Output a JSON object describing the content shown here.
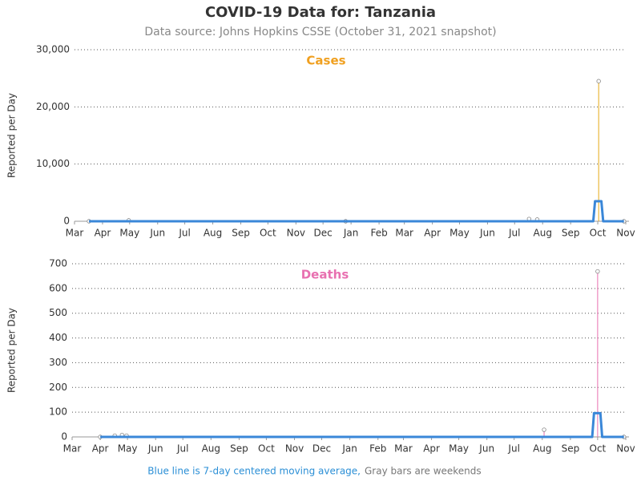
{
  "title": "COVID-19 Data for: Tanzania",
  "subtitle": "Data source: Johns Hopkins CSSE (October 31, 2021 snapshot)",
  "note": {
    "line": "Blue line is 7-day centered moving average,",
    "bars": "Gray bars are weekends"
  },
  "chart_data": [
    {
      "type": "line",
      "title": "Cases",
      "title_color": "#f0a020",
      "ylabel": "Reported per Day",
      "xlim": [
        0,
        610
      ],
      "xticks": [
        {
          "value": 0,
          "label": "Mar"
        },
        {
          "value": 31,
          "label": "Apr"
        },
        {
          "value": 61,
          "label": "May"
        },
        {
          "value": 92,
          "label": "Jun"
        },
        {
          "value": 122,
          "label": "Jul"
        },
        {
          "value": 153,
          "label": "Aug"
        },
        {
          "value": 184,
          "label": "Sep"
        },
        {
          "value": 214,
          "label": "Oct"
        },
        {
          "value": 245,
          "label": "Nov"
        },
        {
          "value": 275,
          "label": "Dec"
        },
        {
          "value": 306,
          "label": "Jan"
        },
        {
          "value": 337,
          "label": "Feb"
        },
        {
          "value": 365,
          "label": "Mar"
        },
        {
          "value": 396,
          "label": "Apr"
        },
        {
          "value": 426,
          "label": "May"
        },
        {
          "value": 457,
          "label": "Jun"
        },
        {
          "value": 487,
          "label": "Jul"
        },
        {
          "value": 518,
          "label": "Aug"
        },
        {
          "value": 549,
          "label": "Sep"
        },
        {
          "value": 579,
          "label": "Oct"
        },
        {
          "value": 610,
          "label": "Nov"
        }
      ],
      "ylim": [
        0,
        30000
      ],
      "yticks": [
        0,
        {
          "value": 10000,
          "label": "10,000"
        },
        {
          "value": 20000,
          "label": "20,000"
        },
        {
          "value": 30000,
          "label": "30,000"
        }
      ],
      "grid": true,
      "series": [
        {
          "style": "stem",
          "color": "#e6a817",
          "x": [
            16,
            60,
            300,
            503,
            512,
            580,
            608
          ],
          "values": [
            0,
            160,
            0,
            400,
            300,
            24500,
            0
          ]
        },
        {
          "style": "line",
          "color": "#3a87d8",
          "x": [
            16,
            574,
            576,
            583,
            585,
            608
          ],
          "values": [
            0,
            0,
            3500,
            3500,
            0,
            0
          ]
        }
      ]
    },
    {
      "type": "line",
      "title": "Deaths",
      "title_color": "#e870b0",
      "ylabel": "Reported per Day",
      "xlim": [
        0,
        610
      ],
      "xticks": [
        {
          "value": 0,
          "label": "Mar"
        },
        {
          "value": 31,
          "label": "Apr"
        },
        {
          "value": 61,
          "label": "May"
        },
        {
          "value": 92,
          "label": "Jun"
        },
        {
          "value": 122,
          "label": "Jul"
        },
        {
          "value": 153,
          "label": "Aug"
        },
        {
          "value": 184,
          "label": "Sep"
        },
        {
          "value": 214,
          "label": "Oct"
        },
        {
          "value": 245,
          "label": "Nov"
        },
        {
          "value": 275,
          "label": "Dec"
        },
        {
          "value": 306,
          "label": "Jan"
        },
        {
          "value": 337,
          "label": "Feb"
        },
        {
          "value": 365,
          "label": "Mar"
        },
        {
          "value": 396,
          "label": "Apr"
        },
        {
          "value": 426,
          "label": "May"
        },
        {
          "value": 457,
          "label": "Jun"
        },
        {
          "value": 487,
          "label": "Jul"
        },
        {
          "value": 518,
          "label": "Aug"
        },
        {
          "value": 549,
          "label": "Sep"
        },
        {
          "value": 579,
          "label": "Oct"
        },
        {
          "value": 610,
          "label": "Nov"
        }
      ],
      "ylim": [
        0,
        700
      ],
      "yticks": [
        0,
        100,
        200,
        300,
        400,
        500,
        600,
        700
      ],
      "grid": true,
      "series": [
        {
          "style": "stem",
          "color": "#e870b0",
          "x": [
            31,
            47,
            55,
            60,
            520,
            579,
            608
          ],
          "values": [
            0,
            5,
            8,
            5,
            29,
            669,
            0
          ]
        },
        {
          "style": "line",
          "color": "#3a87d8",
          "x": [
            31,
            573,
            575,
            582,
            584,
            608
          ],
          "values": [
            0,
            0,
            96,
            96,
            0,
            0
          ]
        }
      ]
    }
  ]
}
